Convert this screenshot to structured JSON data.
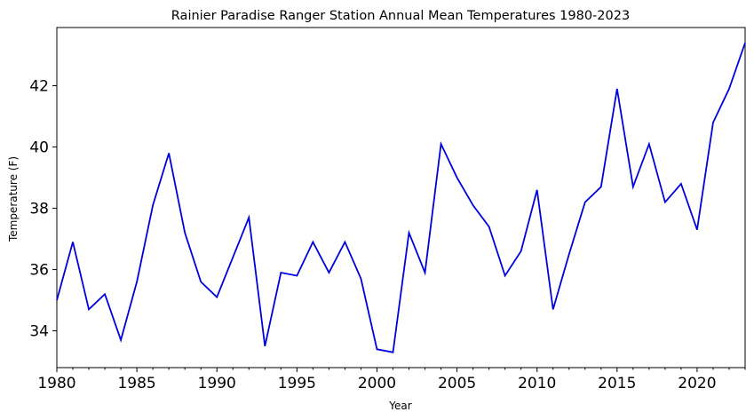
{
  "chart_data": {
    "type": "line",
    "title": "Rainier Paradise Ranger Station Annual Mean Temperatures 1980-2023",
    "xlabel": "Year",
    "ylabel": "Temperature (F)",
    "xlim": [
      1980,
      2023
    ],
    "ylim": [
      32.8,
      43.9
    ],
    "x_ticks": [
      1980,
      1985,
      1990,
      1995,
      2000,
      2005,
      2010,
      2015,
      2020
    ],
    "x_tick_labels": [
      "1980",
      "1985",
      "1990",
      "1995",
      "2000",
      "2005",
      "2010",
      "2015",
      "2020"
    ],
    "y_ticks": [
      34,
      36,
      38,
      40,
      42
    ],
    "y_tick_labels": [
      "34",
      "36",
      "38",
      "40",
      "42"
    ],
    "grid": false,
    "legend": "none",
    "color": "#0000dd",
    "x": [
      1980,
      1981,
      1982,
      1983,
      1984,
      1985,
      1986,
      1987,
      1988,
      1989,
      1990,
      1991,
      1992,
      1993,
      1994,
      1995,
      1996,
      1997,
      1998,
      1999,
      2000,
      2001,
      2002,
      2003,
      2004,
      2005,
      2006,
      2007,
      2008,
      2009,
      2010,
      2011,
      2012,
      2013,
      2014,
      2015,
      2016,
      2017,
      2018,
      2019,
      2020,
      2021,
      2022,
      2023
    ],
    "y": [
      35.0,
      36.9,
      34.7,
      35.2,
      33.7,
      35.6,
      38.1,
      39.8,
      37.2,
      35.6,
      35.1,
      36.4,
      37.7,
      33.5,
      35.9,
      35.8,
      36.9,
      35.9,
      36.9,
      35.7,
      33.4,
      33.3,
      37.2,
      35.9,
      40.1,
      39.0,
      38.1,
      37.4,
      35.8,
      36.6,
      38.6,
      34.7,
      36.5,
      38.2,
      38.7,
      41.9,
      38.7,
      40.1,
      38.2,
      38.8,
      37.3,
      40.8,
      41.9,
      43.4
    ]
  }
}
